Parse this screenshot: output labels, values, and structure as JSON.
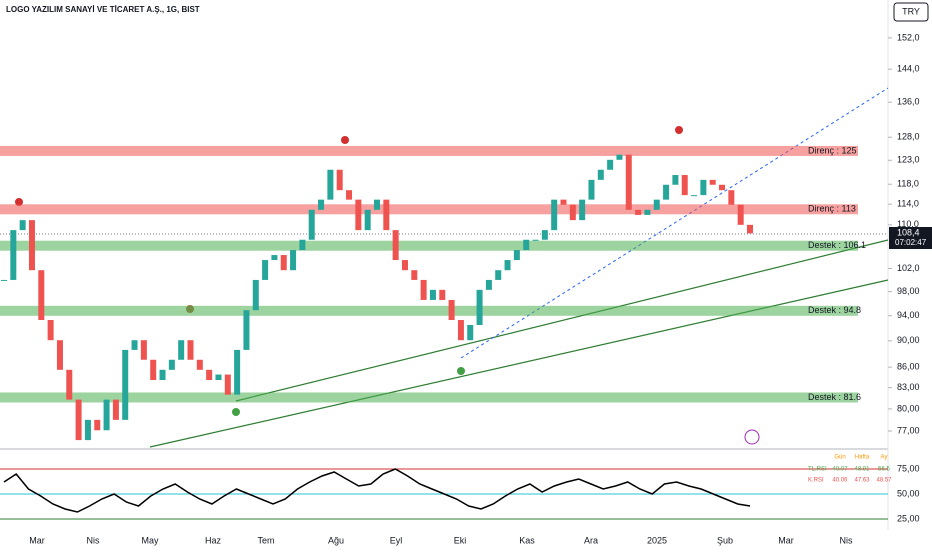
{
  "header": {
    "title": "LOGO YAZILIM SANAYİ VE TİCARET A.Ş., 1G, BIST",
    "currency": "TRY",
    "last_price": "108,4",
    "countdown": "07:02:47"
  },
  "chart_data": {
    "type": "candlestick",
    "log_scale": true,
    "ylim": [
      74.9,
      162.3
    ],
    "yticks": [
      {
        "value": 152,
        "label": "152,0"
      },
      {
        "value": 144,
        "label": "144,0"
      },
      {
        "value": 136,
        "label": "136,0"
      },
      {
        "value": 128,
        "label": "128,0"
      },
      {
        "value": 123,
        "label": "123,0"
      },
      {
        "value": 118,
        "label": "118,0"
      },
      {
        "value": 114,
        "label": "114,0"
      },
      {
        "value": 110,
        "label": "110,0"
      },
      {
        "value": 102,
        "label": "102,0"
      },
      {
        "value": 98,
        "label": "98,00"
      },
      {
        "value": 94,
        "label": "94,00"
      },
      {
        "value": 90,
        "label": "90,00"
      },
      {
        "value": 86,
        "label": "86,00"
      },
      {
        "value": 83,
        "label": "83,00"
      },
      {
        "value": 80,
        "label": "80,00"
      },
      {
        "value": 77,
        "label": "77,00"
      }
    ],
    "x_labels": [
      "Mar",
      "Nis",
      "May",
      "Haz",
      "Tem",
      "Ağu",
      "Eyl",
      "Eki",
      "Kas",
      "Ara",
      "2025",
      "Şub",
      "Mar",
      "Nis"
    ],
    "up_color": "#26a69a",
    "down_color": "#ef5350",
    "closes": [
      100.0,
      109.0,
      110.9,
      101.7,
      93.3,
      90.1,
      85.6,
      81.3,
      75.8,
      78.5,
      77.1,
      81.3,
      78.5,
      88.6,
      90.1,
      87.1,
      84.1,
      85.6,
      87.1,
      90.1,
      87.1,
      85.6,
      84.1,
      84.9,
      82.0,
      88.6,
      94.9,
      100.0,
      103.5,
      104.4,
      101.7,
      105.3,
      107.2,
      112.9,
      114.9,
      121.0,
      116.8,
      114.9,
      109.0,
      112.9,
      114.9,
      109.0,
      103.5,
      101.7,
      100.0,
      96.6,
      98.3,
      96.6,
      93.3,
      90.1,
      92.5,
      98.3,
      100.0,
      101.7,
      103.5,
      105.3,
      107.2,
      107.2,
      109.0,
      114.9,
      113.9,
      110.9,
      114.9,
      118.9,
      121.0,
      123.1,
      124.2,
      112.9,
      111.9,
      112.9,
      114.9,
      117.9,
      119.9,
      115.8,
      115.8,
      118.9,
      117.9,
      116.8,
      113.9,
      110.0,
      108.4
    ],
    "levels": [
      {
        "value": 125,
        "label": "Direnç : 125",
        "color": "#ef5350"
      },
      {
        "value": 113,
        "label": "Direnç : 113",
        "color": "#ef5350"
      },
      {
        "value": 106.1,
        "label": "Destek : 106.1",
        "color": "#4caf50"
      },
      {
        "value": 94.8,
        "label": "Destek : 94.8",
        "color": "#4caf50"
      },
      {
        "value": 81.6,
        "label": "Destek : 81.6",
        "color": "#4caf50"
      }
    ]
  },
  "rsi_panel": {
    "type": "line",
    "ylim": [
      14,
      94
    ],
    "yticks": [
      {
        "value": 75,
        "label": "75,00"
      },
      {
        "value": 50,
        "label": "50,00"
      },
      {
        "value": 25,
        "label": "25,00"
      }
    ],
    "series": [
      {
        "name": "TL.RSI",
        "color": "#000000",
        "values": [
          62,
          70,
          55,
          48,
          40,
          35,
          32,
          38,
          45,
          50,
          42,
          38,
          48,
          55,
          60,
          52,
          45,
          40,
          48,
          55,
          50,
          45,
          40,
          45,
          55,
          62,
          68,
          72,
          65,
          58,
          60,
          70,
          75,
          68,
          60,
          55,
          50,
          45,
          38,
          35,
          40,
          48,
          55,
          60,
          52,
          58,
          62,
          65,
          60,
          55,
          58,
          62,
          55,
          50,
          60,
          62,
          58,
          55,
          50,
          45,
          40,
          38
        ]
      }
    ],
    "table": {
      "header": [
        "Gün",
        "Hafta",
        "Ay"
      ],
      "rows": [
        [
          "TL.RSI",
          "40.07",
          "48.91",
          "56.5"
        ],
        [
          "K.RSI",
          "40.06",
          "47.63",
          "48.57"
        ]
      ]
    }
  }
}
